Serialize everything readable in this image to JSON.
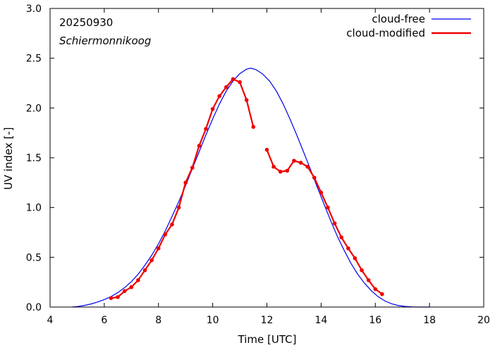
{
  "chart_data": {
    "type": "line",
    "title": "",
    "xlabel": "Time  [UTC]",
    "ylabel": "UV index  [-]",
    "xlim": [
      4,
      20
    ],
    "ylim": [
      0,
      3.0
    ],
    "xticks": [
      4,
      6,
      8,
      10,
      12,
      14,
      16,
      18,
      20
    ],
    "yticks": [
      0.0,
      0.5,
      1.0,
      1.5,
      2.0,
      2.5,
      3.0
    ],
    "xtick_labels": [
      "4",
      "6",
      "8",
      "10",
      "12",
      "14",
      "16",
      "18",
      "20"
    ],
    "ytick_labels": [
      "0.0",
      "0.5",
      "1.0",
      "1.5",
      "2.0",
      "2.5",
      "3.0"
    ],
    "annotations": {
      "date": "20250930",
      "location": "Schiermonnikoog"
    },
    "legend_position": "top-right",
    "series": [
      {
        "name": "cloud-free",
        "color": "#0000ee",
        "markers": false,
        "x": [
          4.8,
          5.0,
          5.25,
          5.5,
          5.75,
          6.0,
          6.25,
          6.5,
          6.75,
          7.0,
          7.25,
          7.5,
          7.75,
          8.0,
          8.25,
          8.5,
          8.75,
          9.0,
          9.25,
          9.5,
          9.75,
          10.0,
          10.25,
          10.5,
          10.75,
          11.0,
          11.25,
          11.4,
          11.6,
          11.85,
          12.1,
          12.35,
          12.6,
          12.85,
          13.1,
          13.35,
          13.6,
          13.85,
          14.1,
          14.35,
          14.6,
          14.85,
          15.1,
          15.35,
          15.6,
          15.85,
          16.1,
          16.35,
          16.6,
          16.85,
          17.1,
          17.35,
          17.6,
          17.8,
          18.0
        ],
        "y": [
          0.0,
          0.005,
          0.015,
          0.03,
          0.05,
          0.075,
          0.105,
          0.145,
          0.195,
          0.255,
          0.33,
          0.42,
          0.52,
          0.635,
          0.765,
          0.91,
          1.06,
          1.22,
          1.39,
          1.56,
          1.73,
          1.89,
          2.04,
          2.17,
          2.27,
          2.345,
          2.39,
          2.4,
          2.385,
          2.34,
          2.27,
          2.17,
          2.04,
          1.89,
          1.73,
          1.56,
          1.39,
          1.21,
          1.04,
          0.87,
          0.71,
          0.57,
          0.44,
          0.33,
          0.24,
          0.165,
          0.105,
          0.062,
          0.033,
          0.015,
          0.006,
          0.002,
          0.0,
          0.0,
          0.0
        ]
      },
      {
        "name": "cloud-modified",
        "color": "#ee0000",
        "markers": true,
        "segments": [
          {
            "x": [
              6.25,
              6.5,
              6.75,
              7.0,
              7.25,
              7.5,
              7.75,
              8.0,
              8.25,
              8.5,
              8.75,
              9.0,
              9.25,
              9.5,
              9.75,
              10.0,
              10.25,
              10.5,
              10.75,
              11.0,
              11.25,
              11.5
            ],
            "y": [
              0.09,
              0.1,
              0.16,
              0.2,
              0.27,
              0.37,
              0.47,
              0.59,
              0.73,
              0.83,
              1.0,
              1.25,
              1.4,
              1.62,
              1.79,
              1.99,
              2.12,
              2.21,
              2.29,
              2.26,
              2.08,
              1.81
            ]
          },
          {
            "x": [
              12.0,
              12.25,
              12.5,
              12.75,
              13.0,
              13.25,
              13.5,
              13.75,
              14.0,
              14.25,
              14.5,
              14.75,
              15.0,
              15.25,
              15.5,
              15.75,
              16.0,
              16.25
            ],
            "y": [
              1.58,
              1.41,
              1.36,
              1.37,
              1.47,
              1.45,
              1.41,
              1.3,
              1.15,
              1.0,
              0.84,
              0.7,
              0.59,
              0.49,
              0.37,
              0.27,
              0.18,
              0.13
            ]
          }
        ]
      }
    ]
  }
}
